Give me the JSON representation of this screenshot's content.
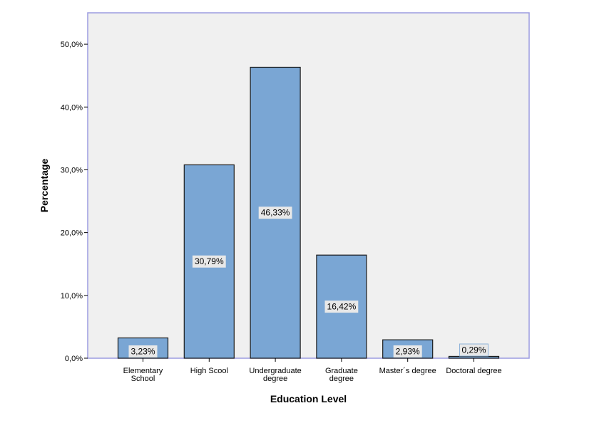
{
  "chart_data": {
    "type": "bar",
    "title": "",
    "xlabel": "Education Level",
    "ylabel": "Percentage",
    "categories": [
      [
        "Elementary",
        "School"
      ],
      [
        "High Scool"
      ],
      [
        "Undergraduate",
        "degree"
      ],
      [
        "Graduate",
        "degree"
      ],
      [
        "Master´s degree"
      ],
      [
        "Doctoral degree"
      ]
    ],
    "values": [
      3.23,
      30.79,
      46.33,
      16.42,
      2.93,
      0.29
    ],
    "data_labels": [
      "3,23%",
      "30,79%",
      "46,33%",
      "16,42%",
      "2,93%",
      "0,29%"
    ],
    "y_ticks": [
      0,
      10,
      20,
      30,
      40,
      50
    ],
    "y_tick_labels": [
      "0,0%",
      "10,0%",
      "20,0%",
      "30,0%",
      "40,0%",
      "50,0%"
    ],
    "ylim": [
      0,
      55
    ],
    "grid": false,
    "colors": {
      "bar_fill": "#7aa6d4",
      "bar_stroke": "#1a1a1a",
      "plot_bg": "#f0f0f0",
      "plot_border": "#9c9ce0",
      "label_bg": "#e8e8e8"
    }
  }
}
